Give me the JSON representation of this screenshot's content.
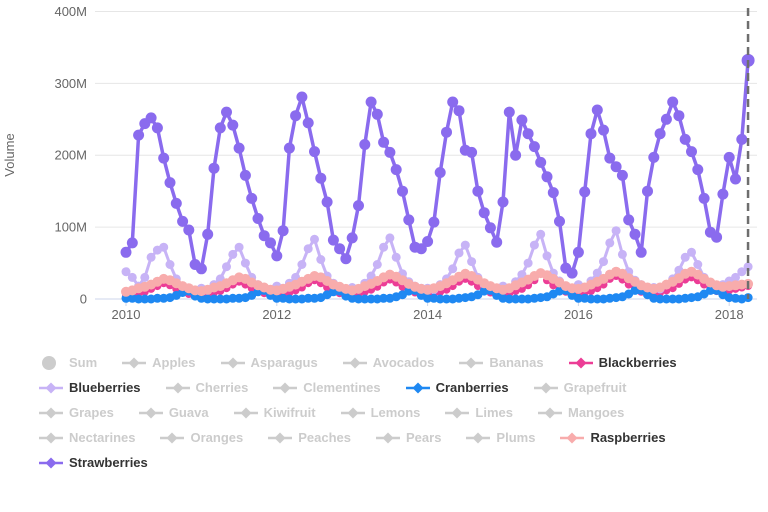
{
  "accent_colors": {
    "grid": "#e6e6e6",
    "axis_line": "#ccd6eb",
    "axis_text": "#666666",
    "dashed_marker": "#6e6e6e",
    "legend_active_text": "#333333",
    "legend_disabled": "#cccccc"
  },
  "chart_data": {
    "type": "line",
    "title": "",
    "xlabel": "",
    "ylabel": "Volume",
    "x_start_year": 2010,
    "x_interval": "monthly",
    "x_points": 100,
    "x_end": "2018-04",
    "ylim_millions": [
      0,
      400
    ],
    "y_tick_values": [
      0,
      100,
      200,
      300,
      400
    ],
    "y_tick_labels": [
      "0",
      "100M",
      "200M",
      "300M",
      "400M"
    ],
    "x_tick_values": [
      2010,
      2012,
      2014,
      2016,
      2018
    ],
    "x_tick_labels": [
      "2010",
      "2012",
      "2014",
      "2016",
      "2018"
    ],
    "grid": "horizontal",
    "legend_position": "bottom",
    "annotation": {
      "type": "vertical-dashed-line",
      "x_decimal_year": 2018.25
    },
    "values_unit": "millions",
    "series": [
      {
        "name": "Blackberries",
        "color": "#ec3d96",
        "line_width": 2.5,
        "marker_radius": 4,
        "values": [
          5,
          6,
          8,
          10,
          14,
          18,
          22,
          19,
          14,
          10,
          7,
          5,
          5,
          6,
          9,
          11,
          15,
          20,
          24,
          20,
          15,
          10,
          8,
          6,
          6,
          7,
          9,
          12,
          16,
          22,
          26,
          22,
          16,
          11,
          8,
          6,
          6,
          7,
          10,
          13,
          17,
          23,
          27,
          23,
          17,
          12,
          9,
          7,
          6,
          8,
          10,
          13,
          18,
          24,
          28,
          24,
          18,
          12,
          9,
          7,
          7,
          8,
          11,
          14,
          19,
          26,
          35,
          26,
          19,
          13,
          10,
          7,
          7,
          9,
          11,
          15,
          20,
          28,
          32,
          27,
          20,
          14,
          10,
          8,
          7,
          9,
          12,
          15,
          21,
          27,
          30,
          26,
          20,
          15,
          11,
          9,
          12,
          14,
          16,
          18
        ]
      },
      {
        "name": "Blueberries",
        "color": "#c7b3f6",
        "line_width": 3,
        "marker_radius": 4.5,
        "values": [
          38,
          30,
          18,
          30,
          58,
          68,
          72,
          48,
          28,
          18,
          14,
          12,
          15,
          12,
          20,
          28,
          45,
          62,
          72,
          50,
          30,
          20,
          15,
          13,
          18,
          15,
          22,
          30,
          48,
          70,
          83,
          55,
          32,
          22,
          16,
          14,
          16,
          14,
          22,
          32,
          48,
          72,
          85,
          58,
          35,
          24,
          18,
          15,
          15,
          13,
          20,
          28,
          42,
          64,
          75,
          52,
          30,
          20,
          15,
          13,
          18,
          15,
          24,
          34,
          50,
          75,
          90,
          60,
          36,
          25,
          18,
          15,
          20,
          16,
          25,
          36,
          52,
          78,
          95,
          62,
          38,
          26,
          20,
          16,
          16,
          14,
          20,
          28,
          40,
          58,
          65,
          48,
          30,
          22,
          18,
          20,
          25,
          30,
          38,
          45
        ]
      },
      {
        "name": "Cranberries",
        "color": "#1e88f2",
        "line_width": 2.5,
        "marker_radius": 4.5,
        "values": [
          1,
          1,
          0,
          0,
          0,
          1,
          1,
          2,
          5,
          9,
          11,
          4,
          1,
          0,
          0,
          0,
          0,
          1,
          1,
          2,
          5,
          10,
          12,
          5,
          1,
          1,
          0,
          0,
          0,
          1,
          1,
          2,
          6,
          10,
          11,
          4,
          1,
          0,
          0,
          0,
          0,
          1,
          1,
          3,
          6,
          11,
          12,
          5,
          1,
          1,
          0,
          0,
          0,
          1,
          2,
          3,
          6,
          11,
          12,
          5,
          1,
          0,
          0,
          0,
          0,
          1,
          2,
          3,
          7,
          11,
          12,
          5,
          1,
          1,
          0,
          0,
          0,
          1,
          2,
          3,
          7,
          12,
          12,
          6,
          1,
          0,
          0,
          0,
          0,
          1,
          2,
          3,
          7,
          12,
          12,
          6,
          2,
          1,
          0,
          2
        ]
      },
      {
        "name": "Raspberries",
        "color": "#f8acac",
        "line_width": 3,
        "marker_radius": 5,
        "values": [
          10,
          12,
          15,
          17,
          20,
          24,
          28,
          26,
          22,
          18,
          15,
          12,
          11,
          13,
          16,
          18,
          22,
          26,
          30,
          28,
          23,
          19,
          16,
          13,
          12,
          14,
          17,
          20,
          24,
          28,
          32,
          30,
          25,
          20,
          17,
          14,
          12,
          14,
          18,
          21,
          25,
          30,
          34,
          31,
          26,
          21,
          17,
          14,
          13,
          15,
          18,
          22,
          26,
          31,
          35,
          32,
          27,
          22,
          18,
          15,
          13,
          15,
          19,
          23,
          27,
          32,
          36,
          33,
          28,
          23,
          18,
          15,
          14,
          16,
          20,
          24,
          28,
          34,
          38,
          35,
          29,
          24,
          19,
          16,
          14,
          16,
          20,
          24,
          29,
          35,
          38,
          34,
          28,
          23,
          19,
          17,
          18,
          19,
          20,
          21
        ]
      },
      {
        "name": "Strawberries",
        "color": "#8a6bee",
        "line_width": 3.5,
        "marker_radius": 5.5,
        "last_marker_radius": 6.5,
        "values": [
          65,
          78,
          228,
          244,
          252,
          238,
          196,
          162,
          133,
          108,
          96,
          48,
          42,
          90,
          182,
          238,
          260,
          242,
          210,
          172,
          140,
          112,
          88,
          78,
          60,
          95,
          210,
          255,
          281,
          245,
          205,
          168,
          135,
          82,
          70,
          56,
          85,
          130,
          215,
          274,
          257,
          218,
          204,
          180,
          150,
          110,
          72,
          70,
          80,
          107,
          176,
          232,
          274,
          262,
          207,
          204,
          150,
          120,
          99,
          79,
          135,
          260,
          200,
          249,
          230,
          212,
          190,
          170,
          148,
          108,
          43,
          36,
          65,
          149,
          230,
          263,
          235,
          196,
          184,
          172,
          110,
          90,
          65,
          150,
          197,
          230,
          250,
          274,
          255,
          222,
          205,
          180,
          140,
          93,
          86,
          146,
          197,
          167,
          222,
          332
        ]
      }
    ]
  },
  "legend": {
    "items": [
      {
        "label": "Sum",
        "active": false,
        "marker": "circle",
        "color": "#cccccc",
        "row": 0
      },
      {
        "label": "Apples",
        "active": false,
        "marker": "diamond",
        "color": "#cccccc",
        "row": 0
      },
      {
        "label": "Asparagus",
        "active": false,
        "marker": "diamond",
        "color": "#cccccc",
        "row": 0
      },
      {
        "label": "Avocados",
        "active": false,
        "marker": "diamond",
        "color": "#cccccc",
        "row": 0
      },
      {
        "label": "Bananas",
        "active": false,
        "marker": "diamond",
        "color": "#cccccc",
        "row": 0
      },
      {
        "label": "Blackberries",
        "active": true,
        "marker": "diamond",
        "color": "#ec3d96",
        "row": 0
      },
      {
        "label": "Blueberries",
        "active": true,
        "marker": "diamond",
        "color": "#c7b3f6",
        "row": 1
      },
      {
        "label": "Cherries",
        "active": false,
        "marker": "diamond",
        "color": "#cccccc",
        "row": 1
      },
      {
        "label": "Clementines",
        "active": false,
        "marker": "diamond",
        "color": "#cccccc",
        "row": 1
      },
      {
        "label": "Cranberries",
        "active": true,
        "marker": "diamond",
        "color": "#1e88f2",
        "row": 1
      },
      {
        "label": "Grapefruit",
        "active": false,
        "marker": "diamond",
        "color": "#cccccc",
        "row": 1
      },
      {
        "label": "Grapes",
        "active": false,
        "marker": "diamond",
        "color": "#cccccc",
        "row": 2
      },
      {
        "label": "Guava",
        "active": false,
        "marker": "diamond",
        "color": "#cccccc",
        "row": 2
      },
      {
        "label": "Kiwifruit",
        "active": false,
        "marker": "diamond",
        "color": "#cccccc",
        "row": 2
      },
      {
        "label": "Lemons",
        "active": false,
        "marker": "diamond",
        "color": "#cccccc",
        "row": 2
      },
      {
        "label": "Limes",
        "active": false,
        "marker": "diamond",
        "color": "#cccccc",
        "row": 2
      },
      {
        "label": "Mangoes",
        "active": false,
        "marker": "diamond",
        "color": "#cccccc",
        "row": 2
      },
      {
        "label": "Nectarines",
        "active": false,
        "marker": "diamond",
        "color": "#cccccc",
        "row": 3
      },
      {
        "label": "Oranges",
        "active": false,
        "marker": "diamond",
        "color": "#cccccc",
        "row": 3
      },
      {
        "label": "Peaches",
        "active": false,
        "marker": "diamond",
        "color": "#cccccc",
        "row": 3
      },
      {
        "label": "Pears",
        "active": false,
        "marker": "diamond",
        "color": "#cccccc",
        "row": 3
      },
      {
        "label": "Plums",
        "active": false,
        "marker": "diamond",
        "color": "#cccccc",
        "row": 3
      },
      {
        "label": "Raspberries",
        "active": true,
        "marker": "diamond",
        "color": "#f8acac",
        "row": 3
      },
      {
        "label": "Strawberries",
        "active": true,
        "marker": "diamond",
        "color": "#8a6bee",
        "row": 4
      }
    ]
  }
}
